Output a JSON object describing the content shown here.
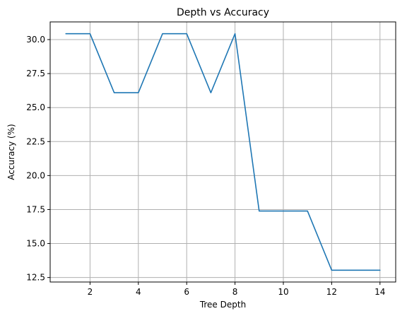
{
  "chart_data": {
    "type": "line",
    "title": "Depth vs Accuracy",
    "xlabel": "Tree Depth",
    "ylabel": "Accuracy (%)",
    "x": [
      1,
      2,
      3,
      4,
      5,
      6,
      7,
      8,
      9,
      10,
      11,
      12,
      13,
      14
    ],
    "series": [
      {
        "values": [
          30.43,
          30.43,
          26.09,
          26.09,
          30.43,
          30.43,
          26.09,
          30.43,
          17.39,
          17.39,
          17.39,
          13.04,
          13.04,
          13.04
        ],
        "color": "#1f77b4"
      }
    ],
    "xlim": [
      0.35,
      14.65
    ],
    "ylim": [
      12.17,
      31.3
    ],
    "xticks": [
      2,
      4,
      6,
      8,
      10,
      12,
      14
    ],
    "xtick_labels": [
      "2",
      "4",
      "6",
      "8",
      "10",
      "12",
      "14"
    ],
    "yticks": [
      12.5,
      15.0,
      17.5,
      20.0,
      22.5,
      25.0,
      27.5,
      30.0
    ],
    "ytick_labels": [
      "12.5",
      "15.0",
      "17.5",
      "20.0",
      "22.5",
      "25.0",
      "27.5",
      "30.0"
    ],
    "grid": true,
    "grid_color": "#b0b0b0",
    "legend": false
  }
}
